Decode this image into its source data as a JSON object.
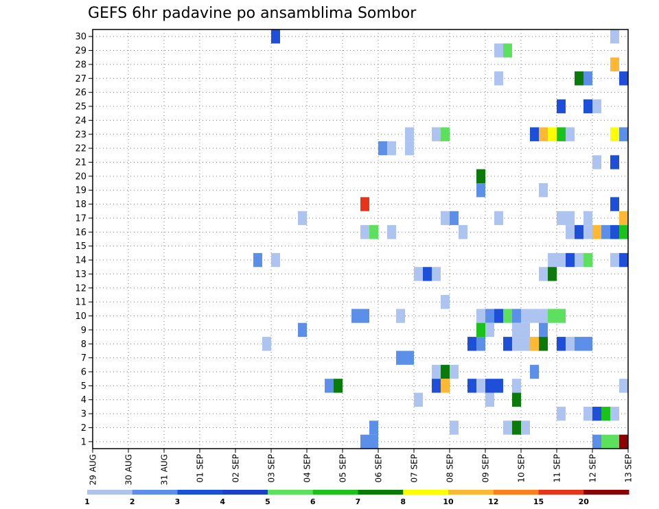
{
  "chart_data": {
    "type": "heatmap",
    "title": "GEFS 6hr padavine po ansamblima Sombor",
    "x_ticks": [
      "29 AUG",
      "30 AUG",
      "31 AUG",
      "01 SEP",
      "02 SEP",
      "03 SEP",
      "04 SEP",
      "05 SEP",
      "06 SEP",
      "07 SEP",
      "08 SEP",
      "09 SEP",
      "10 SEP",
      "11 SEP",
      "12 SEP",
      "13 SEP"
    ],
    "x_range_days": [
      0,
      15
    ],
    "y_ticks": [
      1,
      2,
      3,
      4,
      5,
      6,
      7,
      8,
      9,
      10,
      11,
      12,
      13,
      14,
      15,
      16,
      17,
      18,
      19,
      20,
      21,
      22,
      23,
      24,
      25,
      26,
      27,
      28,
      29,
      30
    ],
    "y_range": [
      0.5,
      30.5
    ],
    "grid": true,
    "legend": {
      "placement": "bottom",
      "labels": [
        "1",
        "2",
        "3",
        "4",
        "5",
        "6",
        "7",
        "8",
        "10",
        "12",
        "15",
        "20"
      ],
      "colors": [
        "#adc3f0",
        "#5c8fe8",
        "#1e4fd8",
        "#1a3fcc",
        "#5de05d",
        "#1cc21c",
        "#0a7a0a",
        "#ffff00",
        "#ffb833",
        "#ff7f1a",
        "#e8321a",
        "#8b0000"
      ]
    },
    "bins": [
      1,
      2,
      3,
      4,
      5,
      6,
      7,
      8,
      10,
      12,
      15,
      20
    ],
    "points": [
      {
        "day": 5.25,
        "member": 30,
        "value": 3
      },
      {
        "day": 14.75,
        "member": 30,
        "value": 1
      },
      {
        "day": 11.5,
        "member": 29,
        "value": 1
      },
      {
        "day": 11.75,
        "member": 29,
        "value": 5
      },
      {
        "day": 14.75,
        "member": 28,
        "value": 10
      },
      {
        "day": 11.5,
        "member": 27,
        "value": 1
      },
      {
        "day": 13.75,
        "member": 27,
        "value": 7
      },
      {
        "day": 14.0,
        "member": 27,
        "value": 2
      },
      {
        "day": 15.0,
        "member": 27,
        "value": 3
      },
      {
        "day": 13.25,
        "member": 25,
        "value": 3
      },
      {
        "day": 14.0,
        "member": 25,
        "value": 3
      },
      {
        "day": 14.25,
        "member": 25,
        "value": 1
      },
      {
        "day": 9.0,
        "member": 23,
        "value": 1
      },
      {
        "day": 9.75,
        "member": 23,
        "value": 1
      },
      {
        "day": 10.0,
        "member": 23,
        "value": 5
      },
      {
        "day": 12.5,
        "member": 23,
        "value": 3
      },
      {
        "day": 12.75,
        "member": 23,
        "value": 10
      },
      {
        "day": 13.0,
        "member": 23,
        "value": 8
      },
      {
        "day": 13.25,
        "member": 23,
        "value": 6
      },
      {
        "day": 13.5,
        "member": 23,
        "value": 1
      },
      {
        "day": 14.75,
        "member": 23,
        "value": 8
      },
      {
        "day": 15.0,
        "member": 23,
        "value": 2
      },
      {
        "day": 8.25,
        "member": 22,
        "value": 2
      },
      {
        "day": 8.5,
        "member": 22,
        "value": 1
      },
      {
        "day": 9.0,
        "member": 22,
        "value": 1
      },
      {
        "day": 14.25,
        "member": 21,
        "value": 1
      },
      {
        "day": 14.75,
        "member": 21,
        "value": 3
      },
      {
        "day": 11.0,
        "member": 20,
        "value": 7
      },
      {
        "day": 12.75,
        "member": 19,
        "value": 1
      },
      {
        "day": 11.0,
        "member": 19,
        "value": 2
      },
      {
        "day": 7.75,
        "member": 18,
        "value": 15
      },
      {
        "day": 14.75,
        "member": 18,
        "value": 3
      },
      {
        "day": 6.0,
        "member": 17,
        "value": 1
      },
      {
        "day": 10.0,
        "member": 17,
        "value": 1
      },
      {
        "day": 10.25,
        "member": 17,
        "value": 2
      },
      {
        "day": 11.5,
        "member": 17,
        "value": 1
      },
      {
        "day": 13.25,
        "member": 17,
        "value": 1
      },
      {
        "day": 13.5,
        "member": 17,
        "value": 1
      },
      {
        "day": 14.0,
        "member": 17,
        "value": 1
      },
      {
        "day": 15.0,
        "member": 17,
        "value": 10
      },
      {
        "day": 7.75,
        "member": 16,
        "value": 1
      },
      {
        "day": 8.0,
        "member": 16,
        "value": 5
      },
      {
        "day": 8.5,
        "member": 16,
        "value": 1
      },
      {
        "day": 10.5,
        "member": 16,
        "value": 1
      },
      {
        "day": 13.5,
        "member": 16,
        "value": 1
      },
      {
        "day": 13.75,
        "member": 16,
        "value": 3
      },
      {
        "day": 14.0,
        "member": 16,
        "value": 1
      },
      {
        "day": 14.25,
        "member": 16,
        "value": 10
      },
      {
        "day": 14.5,
        "member": 16,
        "value": 2
      },
      {
        "day": 14.75,
        "member": 16,
        "value": 3
      },
      {
        "day": 15.0,
        "member": 16,
        "value": 6
      },
      {
        "day": 4.75,
        "member": 14,
        "value": 2
      },
      {
        "day": 5.25,
        "member": 14,
        "value": 1
      },
      {
        "day": 13.0,
        "member": 14,
        "value": 1
      },
      {
        "day": 13.25,
        "member": 14,
        "value": 1
      },
      {
        "day": 13.5,
        "member": 14,
        "value": 3
      },
      {
        "day": 13.75,
        "member": 14,
        "value": 1
      },
      {
        "day": 14.0,
        "member": 14,
        "value": 5
      },
      {
        "day": 14.75,
        "member": 14,
        "value": 1
      },
      {
        "day": 15.0,
        "member": 14,
        "value": 3
      },
      {
        "day": 9.25,
        "member": 13,
        "value": 1
      },
      {
        "day": 9.5,
        "member": 13,
        "value": 3
      },
      {
        "day": 9.75,
        "member": 13,
        "value": 1
      },
      {
        "day": 12.75,
        "member": 13,
        "value": 1
      },
      {
        "day": 13.0,
        "member": 13,
        "value": 7
      },
      {
        "day": 10.0,
        "member": 11,
        "value": 1
      },
      {
        "day": 7.5,
        "member": 10,
        "value": 2
      },
      {
        "day": 7.75,
        "member": 10,
        "value": 2
      },
      {
        "day": 8.75,
        "member": 10,
        "value": 1
      },
      {
        "day": 11.0,
        "member": 10,
        "value": 1
      },
      {
        "day": 11.25,
        "member": 10,
        "value": 2
      },
      {
        "day": 11.5,
        "member": 10,
        "value": 3
      },
      {
        "day": 11.75,
        "member": 10,
        "value": 5
      },
      {
        "day": 12.0,
        "member": 10,
        "value": 2
      },
      {
        "day": 12.25,
        "member": 10,
        "value": 1
      },
      {
        "day": 12.5,
        "member": 10,
        "value": 1
      },
      {
        "day": 12.75,
        "member": 10,
        "value": 1
      },
      {
        "day": 13.0,
        "member": 10,
        "value": 5
      },
      {
        "day": 13.25,
        "member": 10,
        "value": 5
      },
      {
        "day": 6.0,
        "member": 9,
        "value": 2
      },
      {
        "day": 11.0,
        "member": 9,
        "value": 6
      },
      {
        "day": 11.25,
        "member": 9,
        "value": 1
      },
      {
        "day": 12.0,
        "member": 9,
        "value": 1
      },
      {
        "day": 12.25,
        "member": 9,
        "value": 1
      },
      {
        "day": 12.75,
        "member": 9,
        "value": 2
      },
      {
        "day": 5.0,
        "member": 8,
        "value": 1
      },
      {
        "day": 10.75,
        "member": 8,
        "value": 3
      },
      {
        "day": 11.0,
        "member": 8,
        "value": 2
      },
      {
        "day": 11.75,
        "member": 8,
        "value": 3
      },
      {
        "day": 12.0,
        "member": 8,
        "value": 1
      },
      {
        "day": 12.25,
        "member": 8,
        "value": 1
      },
      {
        "day": 12.5,
        "member": 8,
        "value": 10
      },
      {
        "day": 12.75,
        "member": 8,
        "value": 7
      },
      {
        "day": 13.25,
        "member": 8,
        "value": 3
      },
      {
        "day": 13.5,
        "member": 8,
        "value": 1
      },
      {
        "day": 13.75,
        "member": 8,
        "value": 2
      },
      {
        "day": 14.0,
        "member": 8,
        "value": 2
      },
      {
        "day": 8.75,
        "member": 7,
        "value": 2
      },
      {
        "day": 9.0,
        "member": 7,
        "value": 2
      },
      {
        "day": 9.75,
        "member": 6,
        "value": 1
      },
      {
        "day": 10.0,
        "member": 6,
        "value": 7
      },
      {
        "day": 10.25,
        "member": 6,
        "value": 1
      },
      {
        "day": 12.5,
        "member": 6,
        "value": 2
      },
      {
        "day": 6.75,
        "member": 5,
        "value": 2
      },
      {
        "day": 7.0,
        "member": 5,
        "value": 7
      },
      {
        "day": 9.75,
        "member": 5,
        "value": 3
      },
      {
        "day": 10.0,
        "member": 5,
        "value": 10
      },
      {
        "day": 10.75,
        "member": 5,
        "value": 3
      },
      {
        "day": 11.0,
        "member": 5,
        "value": 1
      },
      {
        "day": 11.25,
        "member": 5,
        "value": 3
      },
      {
        "day": 11.5,
        "member": 5,
        "value": 3
      },
      {
        "day": 12.0,
        "member": 5,
        "value": 1
      },
      {
        "day": 15.0,
        "member": 5,
        "value": 1
      },
      {
        "day": 9.25,
        "member": 4,
        "value": 1
      },
      {
        "day": 11.25,
        "member": 4,
        "value": 1
      },
      {
        "day": 12.0,
        "member": 4,
        "value": 7
      },
      {
        "day": 13.25,
        "member": 3,
        "value": 1
      },
      {
        "day": 14.0,
        "member": 3,
        "value": 1
      },
      {
        "day": 14.25,
        "member": 3,
        "value": 3
      },
      {
        "day": 14.5,
        "member": 3,
        "value": 6
      },
      {
        "day": 14.75,
        "member": 3,
        "value": 1
      },
      {
        "day": 8.0,
        "member": 2,
        "value": 2
      },
      {
        "day": 10.25,
        "member": 2,
        "value": 1
      },
      {
        "day": 11.75,
        "member": 2,
        "value": 1
      },
      {
        "day": 12.0,
        "member": 2,
        "value": 7
      },
      {
        "day": 12.25,
        "member": 2,
        "value": 1
      },
      {
        "day": 7.75,
        "member": 1,
        "value": 2
      },
      {
        "day": 8.0,
        "member": 1,
        "value": 2
      },
      {
        "day": 14.25,
        "member": 1,
        "value": 2
      },
      {
        "day": 14.5,
        "member": 1,
        "value": 5
      },
      {
        "day": 14.75,
        "member": 1,
        "value": 5
      },
      {
        "day": 15.0,
        "member": 1,
        "value": 20
      }
    ]
  }
}
